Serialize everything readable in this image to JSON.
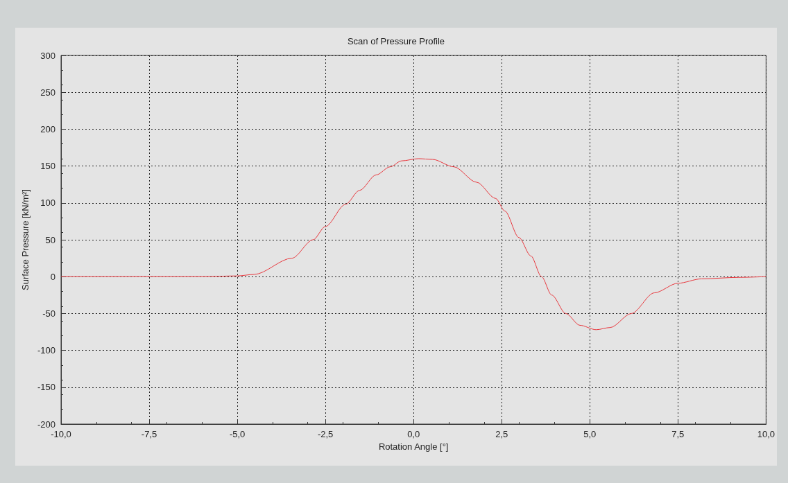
{
  "chart_data": {
    "type": "line",
    "title": "Scan of Pressure Profile",
    "xlabel": "Rotation Angle [°]",
    "ylabel": "Surface Pressure [kN/m²]",
    "x": [
      -10,
      -8,
      -6,
      -5,
      -4.52,
      -3.45,
      -2.85,
      -2.5,
      -1.93,
      -1.53,
      -1.06,
      -0.66,
      -0.34,
      0.14,
      0.54,
      1.14,
      1.79,
      2.33,
      2.59,
      2.99,
      3.33,
      3.63,
      3.92,
      4.32,
      4.72,
      5.18,
      5.58,
      6.18,
      6.83,
      7.5,
      8.17,
      9.22,
      10
    ],
    "series": [
      {
        "color": "#e8363c",
        "values": [
          0,
          0,
          0,
          1,
          3,
          25,
          50,
          68,
          98,
          117,
          138,
          149,
          157,
          160,
          159,
          149,
          128,
          106,
          89,
          53,
          28,
          0,
          -25,
          -50,
          -66,
          -72,
          -69,
          -50,
          -22,
          -9,
          -3,
          -1,
          0
        ]
      }
    ],
    "xlim": [
      -10,
      10
    ],
    "xticks": [
      {
        "value": -10,
        "label": "-10,0"
      },
      {
        "value": -7.5,
        "label": "-7,5"
      },
      {
        "value": -5,
        "label": "-5,0"
      },
      {
        "value": -2.5,
        "label": "-2,5"
      },
      {
        "value": 0,
        "label": "0,0"
      },
      {
        "value": 2.5,
        "label": "2,5"
      },
      {
        "value": 5,
        "label": "5,0"
      },
      {
        "value": 7.5,
        "label": "7,5"
      },
      {
        "value": 10,
        "label": "10,0"
      }
    ],
    "ylim": [
      -200,
      300
    ],
    "yticks": [
      -200,
      -150,
      -100,
      -50,
      0,
      50,
      100,
      150,
      200,
      250,
      300
    ],
    "grid": true,
    "marker": "none",
    "line_style": "solid"
  }
}
